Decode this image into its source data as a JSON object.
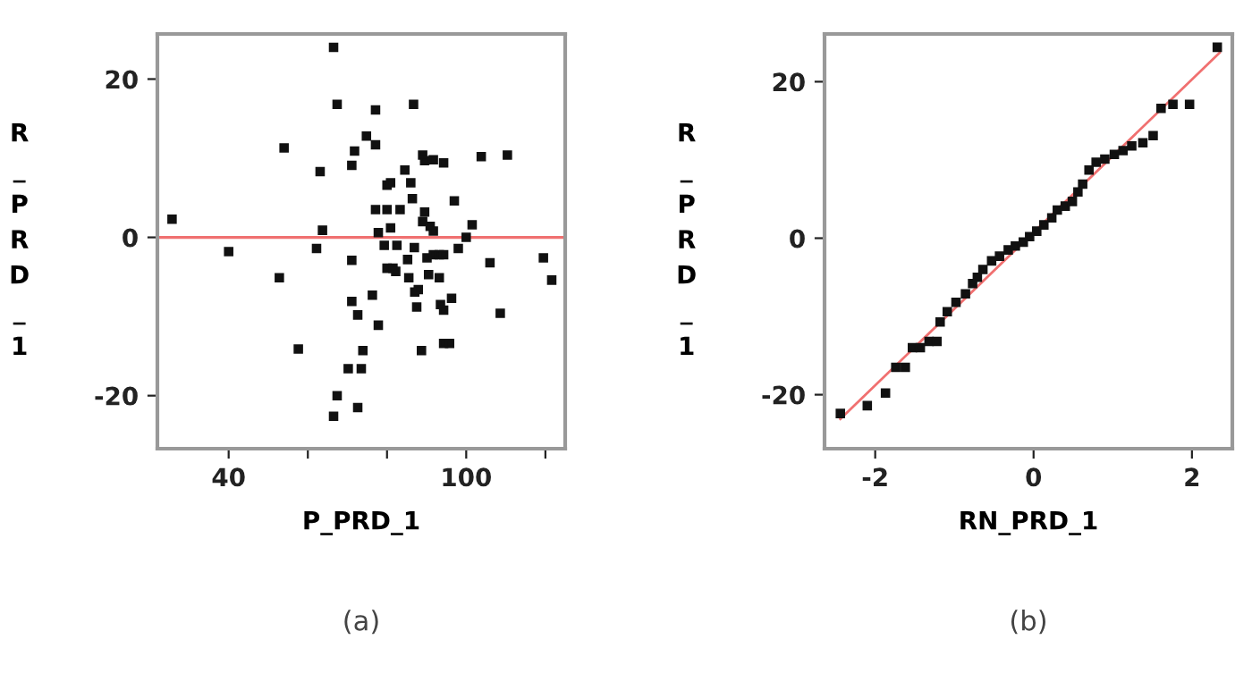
{
  "chart_data": [
    {
      "type": "scatter",
      "xlabel": "P_PRD_1",
      "ylabel": "R_PRD_1",
      "annotations": [
        "(a)"
      ],
      "marker": "square",
      "grid": false,
      "legend": false,
      "xlim": [
        22,
        125
      ],
      "xticks": [
        40,
        {
          "value": 60,
          "label": null
        },
        {
          "value": 80,
          "label": null
        },
        100,
        {
          "value": 120,
          "label": null
        }
      ],
      "ylim": [
        -26.7,
        25.7
      ],
      "yticks": [
        -20,
        0,
        20
      ],
      "ref_lines": [
        {
          "axis": "y",
          "value": 0,
          "label": null,
          "color": "#f07070"
        }
      ],
      "series": [
        {
          "color": "#111111",
          "x": [
            25.7,
            40,
            54.0,
            52.8,
            57.6,
            63.1,
            62.2,
            63.7,
            66.5,
            67.4,
            66.5,
            67.4,
            70.2,
            73.5,
            73.9,
            72.6,
            71.1,
            71.8,
            71.1,
            71.1,
            72.6,
            74.8,
            77.1,
            77.1,
            76.3,
            77.8,
            77.1,
            77.8,
            79.3,
            80.0,
            80.0,
            80.9,
            80.9,
            80.0,
            81.5,
            82.5,
            82.2,
            83.3,
            84.5,
            85.2,
            85.5,
            86.0,
            86.7,
            86.4,
            86.9,
            87.0,
            87.9,
            87.5,
            88.7,
            89.0,
            89.5,
            91.7,
            94.3,
            89.5,
            89.0,
            90.1,
            90.9,
            91.7,
            90.5,
            91.7,
            93.2,
            94.3,
            93.2,
            93.5,
            94.3,
            94.3,
            95.8,
            96.3,
            97.0,
            98.0,
            100.0,
            101.5,
            106.0,
            103.8,
            108.6,
            110.4,
            119.5,
            121.6
          ],
          "values": [
            2.3,
            -1.8,
            11.3,
            -5.1,
            -14.1,
            8.3,
            -1.4,
            0.9,
            24.0,
            16.8,
            -22.6,
            -20.0,
            -16.6,
            -16.6,
            -14.3,
            -21.5,
            9.1,
            10.9,
            -2.9,
            -8.1,
            -9.8,
            12.8,
            11.7,
            16.1,
            -7.3,
            -11.1,
            3.5,
            0.6,
            -1.0,
            3.5,
            6.6,
            6.9,
            1.2,
            -3.9,
            -3.9,
            -1.0,
            -4.3,
            3.5,
            8.5,
            -2.8,
            -5.1,
            6.9,
            16.8,
            4.9,
            -1.3,
            -6.9,
            -6.6,
            -8.8,
            -14.3,
            10.4,
            9.7,
            9.8,
            9.4,
            3.2,
            2.0,
            -2.6,
            1.4,
            0.8,
            -4.7,
            -2.2,
            -2.2,
            -2.2,
            -5.1,
            -8.5,
            -9.2,
            -13.4,
            -13.4,
            -7.7,
            4.6,
            -1.4,
            0.0,
            1.6,
            -3.2,
            10.2,
            -9.6,
            10.4,
            -2.6,
            -5.4
          ]
        }
      ]
    },
    {
      "type": "scatter",
      "xlabel": "RN_PRD_1",
      "ylabel": "R_PRD_1",
      "annotations": [
        "(b)"
      ],
      "marker": "square",
      "grid": false,
      "legend": false,
      "xlim": [
        -2.64,
        2.51
      ],
      "xticks": [
        -2,
        0,
        2
      ],
      "ylim": [
        -26.9,
        26.1
      ],
      "yticks": [
        -20,
        0,
        20
      ],
      "series": [
        {
          "type": "line",
          "color": "#f07070",
          "marker": "none",
          "x": [
            -2.44,
            2.35
          ],
          "values": [
            -23.1,
            23.7
          ]
        },
        {
          "color": "#111111",
          "x": [
            -2.44,
            -2.1,
            -1.87,
            -1.74,
            -1.62,
            -1.53,
            -1.43,
            -1.32,
            -1.22,
            -1.18,
            -1.09,
            -0.98,
            -0.86,
            -0.77,
            -0.71,
            -0.64,
            -0.53,
            -0.43,
            -0.32,
            -0.23,
            -0.13,
            -0.05,
            0.04,
            0.13,
            0.23,
            0.3,
            0.4,
            0.49,
            0.56,
            0.62,
            0.7,
            0.79,
            0.9,
            1.02,
            1.13,
            1.24,
            1.38,
            1.51,
            1.61,
            1.76,
            1.97,
            2.32
          ],
          "values": [
            -22.4,
            -21.4,
            -19.8,
            -16.5,
            -16.5,
            -14.0,
            -14.0,
            -13.2,
            -13.2,
            -10.7,
            -9.4,
            -8.2,
            -7.1,
            -5.8,
            -5.0,
            -4.0,
            -2.9,
            -2.3,
            -1.5,
            -1.0,
            -0.5,
            0.2,
            0.9,
            1.7,
            2.6,
            3.6,
            4.1,
            4.7,
            5.9,
            6.9,
            8.7,
            9.7,
            10.1,
            10.7,
            11.2,
            11.8,
            12.2,
            13.1,
            16.6,
            17.1,
            17.1,
            24.4
          ]
        }
      ]
    }
  ]
}
